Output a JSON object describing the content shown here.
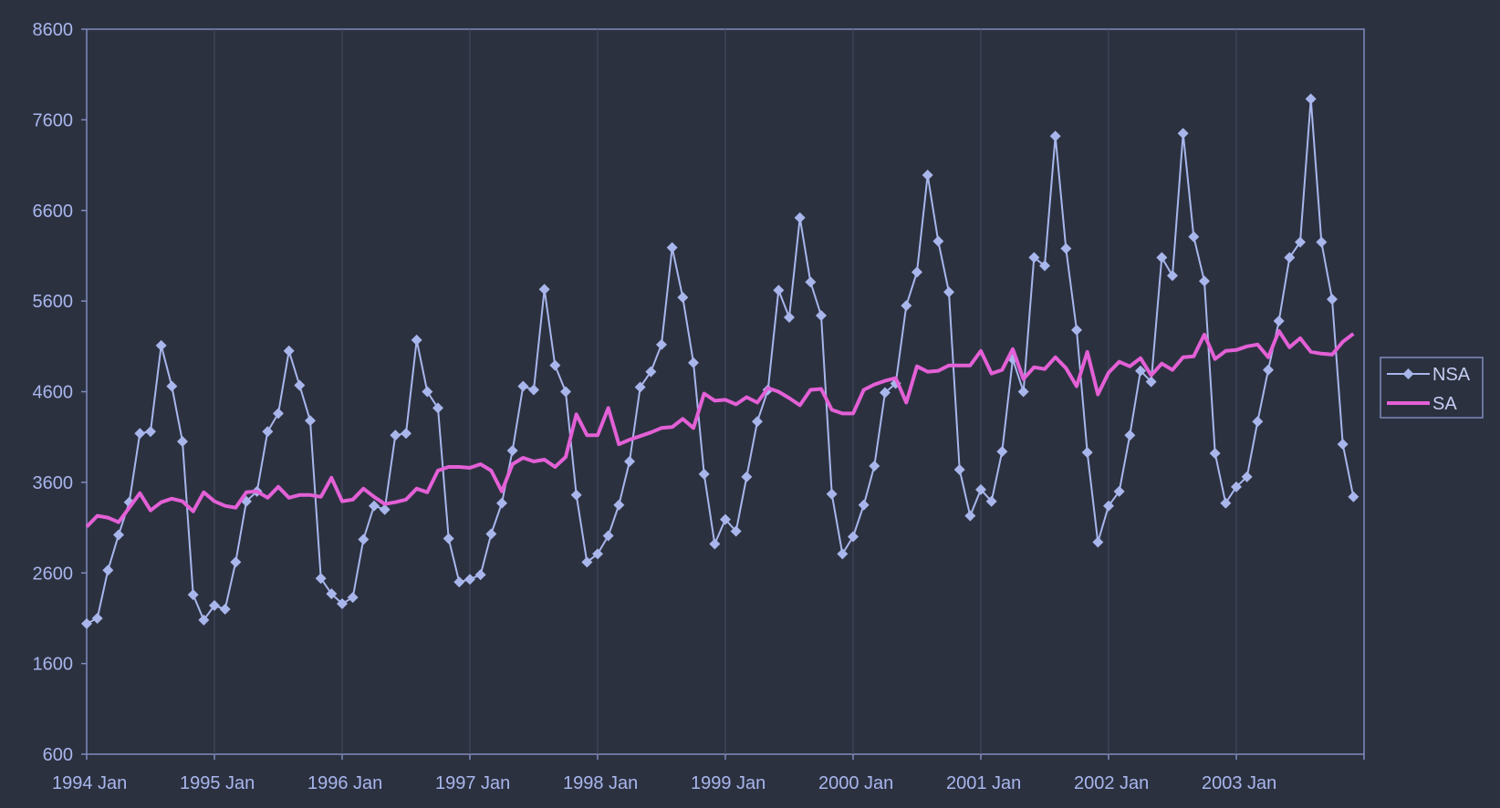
{
  "chart_data": {
    "type": "line",
    "x_start": "1994-01",
    "x_frequency": "monthly",
    "xlim": [
      "1994-01",
      "2004-01"
    ],
    "x_tick_labels": [
      "1994 Jan",
      "1995 Jan",
      "1996 Jan",
      "1997 Jan",
      "1998 Jan",
      "1999 Jan",
      "2000 Jan",
      "2001 Jan",
      "2002 Jan",
      "2003 Jan"
    ],
    "ylim": [
      600,
      8600
    ],
    "y_ticks": [
      600,
      1600,
      2600,
      3600,
      4600,
      5600,
      6600,
      7600,
      8600
    ],
    "grid": "vertical",
    "legend_position": "right",
    "series": [
      {
        "name": "NSA",
        "color": "#a8b6ec",
        "marker": "diamond",
        "values": [
          2040,
          2100,
          2630,
          3020,
          3380,
          4140,
          4160,
          5110,
          4660,
          4050,
          2360,
          2080,
          2240,
          2200,
          2720,
          3390,
          3500,
          4160,
          4360,
          5050,
          4670,
          4280,
          2540,
          2370,
          2260,
          2330,
          2970,
          3340,
          3300,
          4120,
          4140,
          5170,
          4600,
          4420,
          2980,
          2500,
          2530,
          2580,
          3030,
          3370,
          3950,
          4660,
          4620,
          5730,
          4890,
          4600,
          3460,
          2720,
          2810,
          3010,
          3350,
          3830,
          4650,
          4820,
          5120,
          6190,
          5640,
          4920,
          3690,
          2920,
          3190,
          3060,
          3660,
          4270,
          4620,
          5720,
          5420,
          6520,
          5810,
          5440,
          3470,
          2810,
          3000,
          3350,
          3780,
          4590,
          4690,
          5550,
          5920,
          6990,
          6260,
          5700,
          3740,
          3230,
          3520,
          3390,
          3940,
          4960,
          4600,
          6080,
          5990,
          7420,
          6180,
          5280,
          3930,
          2940,
          3340,
          3500,
          4120,
          4830,
          4710,
          6080,
          5880,
          7450,
          6310,
          5820,
          3920,
          3370,
          3550,
          3660,
          4270,
          4840,
          5380,
          6080,
          6250,
          7830,
          6250,
          5620,
          4020,
          3440
        ]
      },
      {
        "name": "SA",
        "color": "#e360d6",
        "marker": "none",
        "values": [
          3110,
          3230,
          3210,
          3160,
          3320,
          3480,
          3290,
          3380,
          3420,
          3390,
          3280,
          3490,
          3390,
          3340,
          3320,
          3490,
          3500,
          3430,
          3550,
          3430,
          3460,
          3460,
          3440,
          3650,
          3390,
          3410,
          3530,
          3440,
          3360,
          3380,
          3410,
          3530,
          3490,
          3730,
          3770,
          3770,
          3760,
          3800,
          3730,
          3500,
          3800,
          3870,
          3830,
          3850,
          3770,
          3880,
          4350,
          4120,
          4120,
          4420,
          4020,
          4070,
          4110,
          4150,
          4200,
          4210,
          4300,
          4200,
          4580,
          4500,
          4510,
          4460,
          4540,
          4480,
          4640,
          4600,
          4530,
          4450,
          4620,
          4630,
          4400,
          4360,
          4360,
          4620,
          4680,
          4720,
          4750,
          4480,
          4880,
          4820,
          4830,
          4890,
          4890,
          4890,
          5050,
          4800,
          4840,
          5070,
          4740,
          4870,
          4850,
          4980,
          4860,
          4660,
          5040,
          4570,
          4810,
          4930,
          4880,
          4970,
          4780,
          4910,
          4840,
          4980,
          4990,
          5230,
          4960,
          5050,
          5060,
          5100,
          5120,
          4980,
          5270,
          5090,
          5190,
          5040,
          5020,
          5010,
          5150,
          5240
        ]
      }
    ]
  }
}
